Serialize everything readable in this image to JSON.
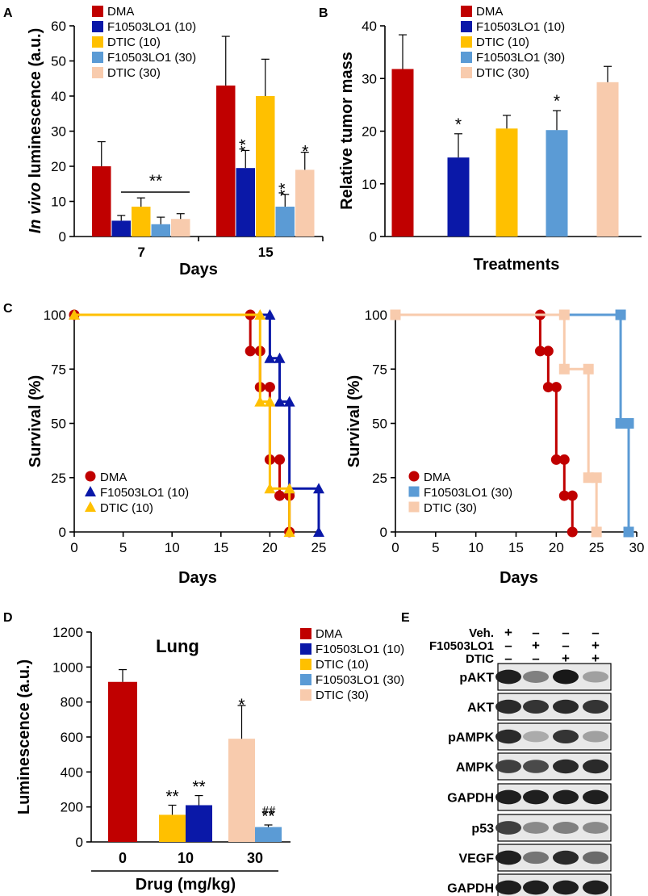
{
  "colors": {
    "dma": "#C00000",
    "f10": "#0A18A8",
    "dtic10": "#FFC000",
    "f30": "#5B9BD5",
    "dtic30": "#F8CBAD",
    "axis": "#000000"
  },
  "legend_labels": [
    "DMA",
    "F10503LO1 (10)",
    "DTIC (10)",
    "F10503LO1 (30)",
    "DTIC (30)"
  ],
  "panels": {
    "A": {
      "letter": "A",
      "ylabel_italic": "In vivo",
      "ylabel_rest": " luminescence (a.u.)",
      "xlabel": "Days"
    },
    "B": {
      "letter": "B",
      "ylabel": "Relative tumor mass",
      "xlabel": "Treatments"
    },
    "C": {
      "letter": "C",
      "ylabel": "Survival (%)",
      "xlabel": "Days"
    },
    "D": {
      "letter": "D",
      "ylabel": "Luminescence (a.u.)",
      "xlabel": "Drug (mg/kg)",
      "title": "Lung"
    },
    "E": {
      "letter": "E",
      "header_rows": [
        {
          "label": "Veh.",
          "marks": [
            "+",
            "–",
            "–",
            "–"
          ]
        },
        {
          "label": "F10503LO1",
          "marks": [
            "–",
            "+",
            "–",
            "+"
          ]
        },
        {
          "label": "DTIC",
          "marks": [
            "–",
            "–",
            "+",
            "+"
          ]
        }
      ],
      "blots": [
        {
          "label": "pAKT",
          "intensities": [
            0.95,
            0.5,
            0.98,
            0.35
          ]
        },
        {
          "label": "AKT",
          "intensities": [
            0.9,
            0.85,
            0.9,
            0.85
          ]
        },
        {
          "label": "pAMPK",
          "intensities": [
            0.9,
            0.3,
            0.85,
            0.35
          ]
        },
        {
          "label": "AMPK",
          "intensities": [
            0.8,
            0.75,
            0.9,
            0.9
          ]
        },
        {
          "label": "GAPDH",
          "intensities": [
            0.95,
            0.95,
            0.95,
            0.95
          ]
        },
        {
          "label": "p53",
          "intensities": [
            0.8,
            0.45,
            0.5,
            0.45
          ]
        },
        {
          "label": "VEGF",
          "intensities": [
            0.95,
            0.55,
            0.9,
            0.6
          ]
        },
        {
          "label": "GAPDH",
          "intensities": [
            0.95,
            0.95,
            0.95,
            0.95
          ]
        }
      ]
    }
  },
  "chart_data": [
    {
      "id": "A",
      "type": "bar",
      "categories": [
        "7",
        "15"
      ],
      "series": [
        {
          "name": "DMA",
          "values": [
            20,
            43
          ],
          "errors": [
            7,
            14
          ],
          "sig": [
            "",
            ""
          ]
        },
        {
          "name": "F10503LO1 (10)",
          "values": [
            4.5,
            19.5
          ],
          "errors": [
            1.5,
            5
          ],
          "sig": [
            "",
            "**"
          ]
        },
        {
          "name": "DTIC (10)",
          "values": [
            8.5,
            40
          ],
          "errors": [
            2.5,
            10.5
          ],
          "sig": [
            "",
            ""
          ]
        },
        {
          "name": "F10503LO1 (30)",
          "values": [
            3.5,
            8.5
          ],
          "errors": [
            2,
            3.5
          ],
          "sig": [
            "",
            "**"
          ]
        },
        {
          "name": "DTIC (30)",
          "values": [
            5,
            19
          ],
          "errors": [
            1.5,
            5
          ],
          "sig": [
            "",
            "*"
          ]
        }
      ],
      "group_annotation": {
        "category": "7",
        "text": "**"
      },
      "xlabel": "Days",
      "ylabel": "In vivo luminescence (a.u.)",
      "ylim": [
        0,
        60
      ],
      "yticks": [
        0,
        10,
        20,
        30,
        40,
        50,
        60
      ]
    },
    {
      "id": "B",
      "type": "bar",
      "categories": [
        "DMA",
        "F10503LO1 (10)",
        "DTIC (10)",
        "F10503LO1 (30)",
        "DTIC (30)"
      ],
      "values": [
        31.8,
        15,
        20.5,
        20.2,
        29.3
      ],
      "errors": [
        6.5,
        4.5,
        2.5,
        3.7,
        3
      ],
      "sig": [
        "",
        "*",
        "",
        "*",
        ""
      ],
      "xlabel": "Treatments",
      "ylabel": "Relative tumor mass",
      "ylim": [
        0,
        40
      ],
      "yticks": [
        0,
        10,
        20,
        30,
        40
      ]
    },
    {
      "id": "C-left",
      "type": "line",
      "xlabel": "Days",
      "ylabel": "Survival (%)",
      "xlim": [
        0,
        25
      ],
      "ylim": [
        0,
        100
      ],
      "xticks": [
        0,
        5,
        10,
        15,
        20,
        25
      ],
      "yticks": [
        0,
        25,
        50,
        75,
        100
      ],
      "series": [
        {
          "name": "DMA",
          "marker": "circle",
          "x": [
            0,
            18,
            19,
            20,
            21,
            22
          ],
          "y": [
            100,
            83.3,
            66.7,
            33.3,
            16.7,
            0
          ]
        },
        {
          "name": "F10503LO1 (10)",
          "marker": "triangle",
          "x": [
            0,
            20,
            21,
            22,
            25
          ],
          "y": [
            100,
            80,
            60,
            20,
            0
          ]
        },
        {
          "name": "DTIC (10)",
          "marker": "triangle",
          "x": [
            0,
            19,
            20,
            22
          ],
          "y": [
            100,
            60,
            20,
            0
          ]
        }
      ]
    },
    {
      "id": "C-right",
      "type": "line",
      "xlabel": "Days",
      "ylabel": "Survival (%)",
      "xlim": [
        0,
        30
      ],
      "ylim": [
        0,
        100
      ],
      "xticks": [
        0,
        5,
        10,
        15,
        20,
        25,
        30
      ],
      "yticks": [
        0,
        25,
        50,
        75,
        100
      ],
      "series": [
        {
          "name": "DMA",
          "marker": "circle",
          "x": [
            0,
            18,
            19,
            20,
            21,
            22
          ],
          "y": [
            100,
            83.3,
            66.7,
            33.3,
            16.7,
            0
          ]
        },
        {
          "name": "F10503LO1 (30)",
          "marker": "square",
          "x": [
            0,
            28,
            29
          ],
          "y": [
            100,
            50,
            0
          ]
        },
        {
          "name": "DTIC (30)",
          "marker": "square",
          "x": [
            0,
            21,
            24,
            25
          ],
          "y": [
            100,
            75,
            25,
            0
          ]
        }
      ]
    },
    {
      "id": "D",
      "type": "bar",
      "title": "Lung",
      "categories": [
        "0",
        "10",
        "30"
      ],
      "series": [
        {
          "name": "DMA",
          "values": [
            915,
            null,
            null
          ],
          "errors": [
            70,
            null,
            null
          ],
          "sig": [
            "",
            "",
            ""
          ]
        },
        {
          "name": "F10503LO1 (10)",
          "values": [
            null,
            210,
            null
          ],
          "errors": [
            null,
            55,
            null
          ],
          "sig": [
            "",
            "**",
            ""
          ]
        },
        {
          "name": "DTIC (10)",
          "values": [
            null,
            155,
            null
          ],
          "errors": [
            null,
            55,
            null
          ],
          "sig": [
            "",
            "**",
            ""
          ]
        },
        {
          "name": "F10503LO1 (30)",
          "values": [
            null,
            null,
            85
          ],
          "errors": [
            null,
            null,
            12
          ],
          "sig": [
            "",
            "",
            "**"
          ]
        },
        {
          "name": "DTIC (30)",
          "values": [
            null,
            null,
            590
          ],
          "errors": [
            null,
            null,
            190
          ],
          "sig": [
            "",
            "",
            "*"
          ]
        }
      ],
      "extra_annotation": {
        "category": "30",
        "series": "F10503LO1 (30)",
        "text": "##"
      },
      "xlabel": "Drug (mg/kg)",
      "ylabel": "Luminescence (a.u.)",
      "ylim": [
        0,
        1200
      ],
      "yticks": [
        0,
        200,
        400,
        600,
        800,
        1000,
        1200
      ]
    }
  ]
}
